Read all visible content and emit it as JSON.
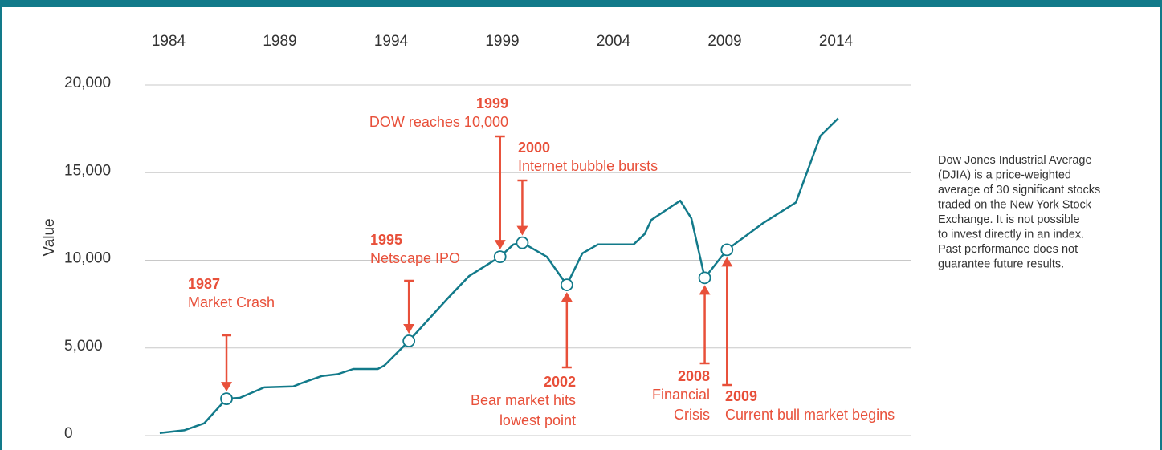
{
  "chart_data": {
    "type": "line",
    "y_label": "Value",
    "x": [
      1983.6,
      1984.7,
      1985.6,
      1986.6,
      1987.2,
      1988.3,
      1989.6,
      1990.0,
      1990.9,
      1991.6,
      1992.3,
      1993.4,
      1993.7,
      1994.8,
      1996.6,
      1997.5,
      1998.9,
      1999.5,
      1999.9,
      2001.0,
      2001.9,
      2002.6,
      2003.3,
      2004.9,
      2005.4,
      2005.7,
      2006.4,
      2007.0,
      2007.5,
      2008.1,
      2009.1,
      2010.7,
      2011.7,
      2012.2,
      2013.3,
      2014.1
    ],
    "series": [
      {
        "color": "#127a8a",
        "values": [
          150,
          300,
          700,
          2100,
          2150,
          2750,
          2800,
          3000,
          3400,
          3500,
          3800,
          3800,
          4000,
          5400,
          7900,
          9100,
          10200,
          10900,
          11000,
          10200,
          8600,
          10400,
          10900,
          10900,
          11500,
          12300,
          12900,
          13400,
          12400,
          9000,
          10600,
          12100,
          12900,
          13300,
          17100,
          18100
        ]
      }
    ],
    "xlim": [
      1983,
      2019
    ],
    "xticks": [
      1984,
      1989,
      1994,
      1999,
      2004,
      2009,
      2014
    ],
    "ylim": [
      0,
      20000
    ],
    "yticks": [
      0,
      {
        "value": 5000,
        "label": "5,000"
      },
      {
        "value": 10000,
        "label": "10,000"
      },
      {
        "value": 15000,
        "label": "15,000"
      },
      {
        "value": 20000,
        "label": "20,000"
      }
    ],
    "grid": true,
    "annotations": [
      {
        "label": "1987",
        "text": [
          "Market Crash"
        ]
      },
      {
        "label": "1995",
        "text": [
          "Netscape IPO"
        ]
      },
      {
        "label": "1999",
        "text": [
          "DOW reaches 10,000"
        ]
      },
      {
        "label": "2000",
        "text": [
          "Internet bubble bursts"
        ]
      },
      {
        "label": "2002",
        "text": [
          "Bear market hits",
          "lowest point"
        ]
      },
      {
        "label": "2008",
        "text": [
          "Financial",
          "Crisis"
        ]
      },
      {
        "label": "2009",
        "text": [
          "Current bull market begins"
        ]
      }
    ],
    "note": [
      "Dow Jones Industrial Average",
      "(DJIA) is a price-weighted",
      "average of 30 significant stocks",
      "traded on the New York Stock",
      "Exchange. It is not possible",
      "to invest directly in an index.",
      "Past performance does not",
      "guarantee future results."
    ]
  }
}
